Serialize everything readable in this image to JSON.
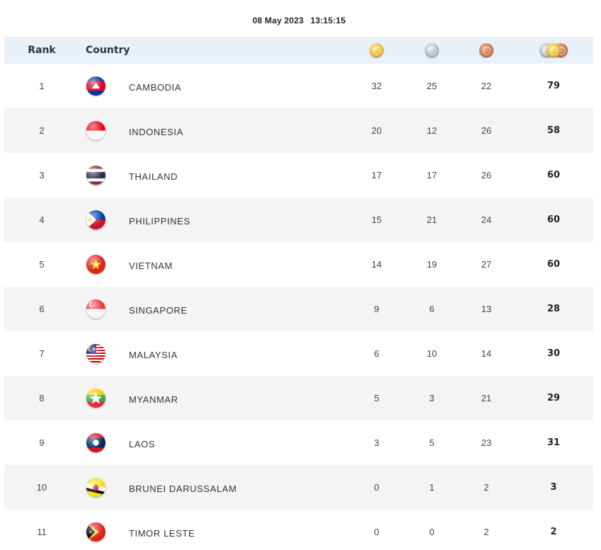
{
  "timestamp": {
    "date": "08 May 2023",
    "time": "13:15:15"
  },
  "header": {
    "rank": "Rank",
    "country": "Country",
    "gold_icon": "gold-medal-icon",
    "silver_icon": "silver-medal-icon",
    "bronze_icon": "bronze-medal-icon",
    "total_icon": "total-medals-icon"
  },
  "rows": [
    {
      "rank": "1",
      "country": "CAMBODIA",
      "flag": "cambodia-flag-icon",
      "gold": "32",
      "silver": "25",
      "bronze": "22",
      "total": "79"
    },
    {
      "rank": "2",
      "country": "INDONESIA",
      "flag": "indonesia-flag-icon",
      "gold": "20",
      "silver": "12",
      "bronze": "26",
      "total": "58"
    },
    {
      "rank": "3",
      "country": "THAILAND",
      "flag": "thailand-flag-icon",
      "gold": "17",
      "silver": "17",
      "bronze": "26",
      "total": "60"
    },
    {
      "rank": "4",
      "country": "PHILIPPINES",
      "flag": "philippines-flag-icon",
      "gold": "15",
      "silver": "21",
      "bronze": "24",
      "total": "60"
    },
    {
      "rank": "5",
      "country": "VIETNAM",
      "flag": "vietnam-flag-icon",
      "gold": "14",
      "silver": "19",
      "bronze": "27",
      "total": "60"
    },
    {
      "rank": "6",
      "country": "SINGAPORE",
      "flag": "singapore-flag-icon",
      "gold": "9",
      "silver": "6",
      "bronze": "13",
      "total": "28"
    },
    {
      "rank": "7",
      "country": "MALAYSIA",
      "flag": "malaysia-flag-icon",
      "gold": "6",
      "silver": "10",
      "bronze": "14",
      "total": "30"
    },
    {
      "rank": "8",
      "country": "MYANMAR",
      "flag": "myanmar-flag-icon",
      "gold": "5",
      "silver": "3",
      "bronze": "21",
      "total": "29"
    },
    {
      "rank": "9",
      "country": "LAOS",
      "flag": "laos-flag-icon",
      "gold": "3",
      "silver": "5",
      "bronze": "23",
      "total": "31"
    },
    {
      "rank": "10",
      "country": "BRUNEI DARUSSALAM",
      "flag": "brunei-flag-icon",
      "gold": "0",
      "silver": "1",
      "bronze": "2",
      "total": "3"
    },
    {
      "rank": "11",
      "country": "TIMOR LESTE",
      "flag": "timor-leste-flag-icon",
      "gold": "0",
      "silver": "0",
      "bronze": "2",
      "total": "2"
    }
  ]
}
